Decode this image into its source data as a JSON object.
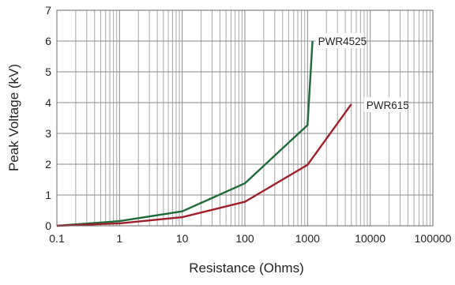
{
  "chart_data": {
    "type": "line",
    "title": "",
    "xlabel": "Resistance (Ohms)",
    "ylabel": "Peak Voltage (kV)",
    "xscale": "log",
    "xlim": [
      0.1,
      100000
    ],
    "ylim": [
      0,
      7
    ],
    "grid": true,
    "x_tick_labels": [
      "0.1",
      "1",
      "10",
      "100",
      "1000",
      "10000",
      "100000"
    ],
    "y_tick_labels": [
      "0",
      "1",
      "2",
      "3",
      "4",
      "5",
      "6",
      "7"
    ],
    "series": [
      {
        "name": "PWR4525",
        "color": "#1e6b3a",
        "x": [
          0.1,
          1,
          10,
          100,
          1000,
          1200
        ],
        "y": [
          0,
          0.15,
          0.47,
          1.38,
          3.27,
          6.0
        ]
      },
      {
        "name": "PWR615",
        "color": "#a01e2a",
        "x": [
          0.1,
          1,
          10,
          100,
          1000,
          5000
        ],
        "y": [
          0,
          0.08,
          0.28,
          0.78,
          1.98,
          3.95
        ]
      }
    ]
  }
}
